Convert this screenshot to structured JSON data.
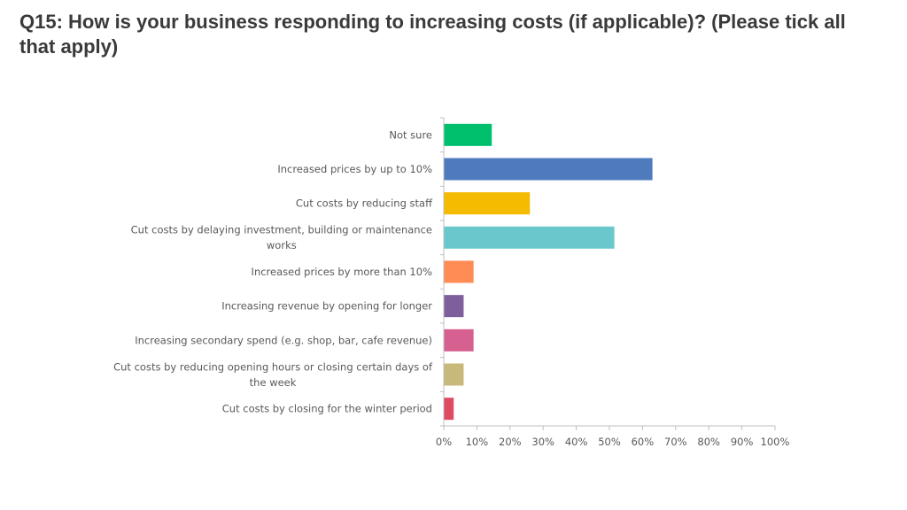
{
  "slide": {
    "title": "Q15: How is your business responding to increasing costs (if applicable)? (Please tick all that apply)"
  },
  "chart_data": {
    "type": "bar",
    "orientation": "horizontal",
    "title": "",
    "xlabel": "",
    "ylabel": "",
    "categories": [
      [
        "Not sure"
      ],
      [
        "Increased prices by up to 10%"
      ],
      [
        "Cut costs by reducing staff"
      ],
      [
        "Cut costs by delaying investment, building or maintenance",
        "works"
      ],
      [
        "Increased prices by more than 10%"
      ],
      [
        "Increasing revenue by opening for longer"
      ],
      [
        "Increasing secondary spend (e.g. shop, bar, cafe revenue)"
      ],
      [
        "Cut costs by reducing opening hours or closing certain days of",
        "the week"
      ],
      [
        "Cut costs by closing for the winter period"
      ]
    ],
    "values": [
      14.5,
      63,
      26,
      51.5,
      9,
      6,
      9,
      6,
      3
    ],
    "unit": "%",
    "colors": [
      "#00c06e",
      "#4f7bbd",
      "#f5bb00",
      "#6ac8cc",
      "#ff8c55",
      "#7e5e9c",
      "#d6608f",
      "#c8b87a",
      "#de4b63"
    ],
    "xlim": [
      0,
      100
    ],
    "xticks": [
      0,
      10,
      20,
      30,
      40,
      50,
      60,
      70,
      80,
      90,
      100
    ],
    "xtick_labels": [
      "0%",
      "10%",
      "20%",
      "30%",
      "40%",
      "50%",
      "60%",
      "70%",
      "80%",
      "90%",
      "100%"
    ],
    "grid": false,
    "legend": "none",
    "axis_color": "#bfbfbf"
  }
}
